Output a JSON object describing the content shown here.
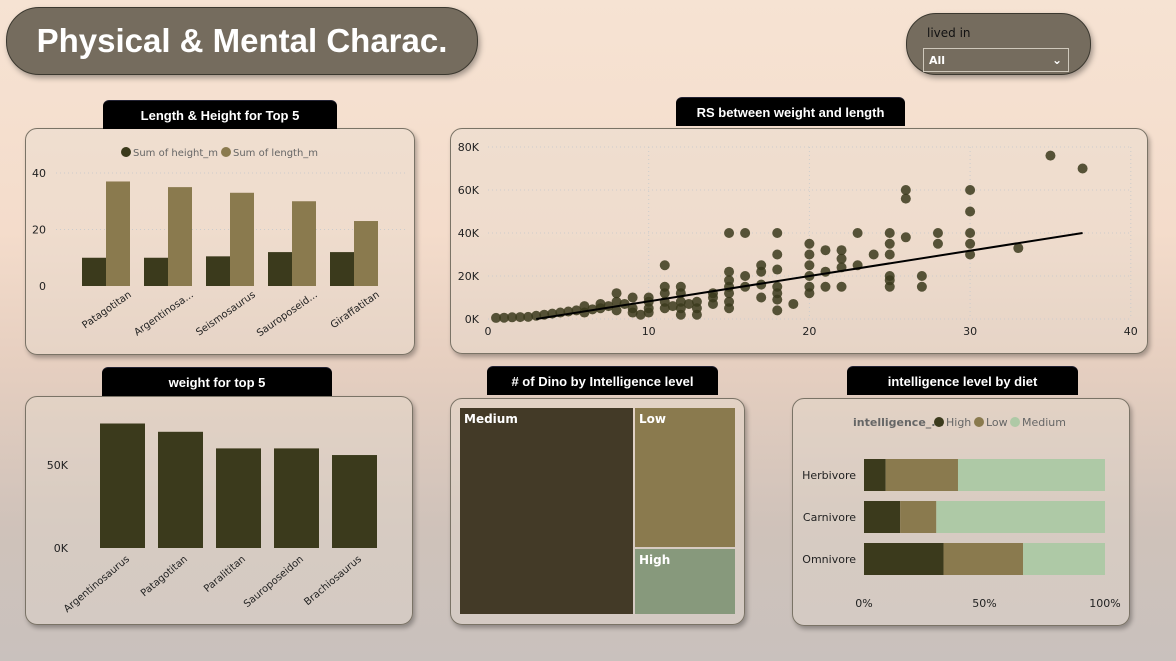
{
  "header": {
    "title": "Physical & Mental Charac."
  },
  "slicer": {
    "label": "lived in",
    "value": "All"
  },
  "colors": {
    "dark": "#3b3a1c",
    "olive": "#8a7a4e",
    "sage": "#aec9a6",
    "treemap_high": "#87997c",
    "treemap_medium": "#433a27"
  },
  "panels": {
    "length_height": "Length & Height for Top 5",
    "scatter": "RS between weight and length",
    "weight": "weight for top 5",
    "treemap": "# of Dino by Intelligence level",
    "diet": "intelligence level by diet"
  },
  "chart_data": [
    {
      "type": "bar",
      "id": "length_height",
      "categories": [
        "Patagotitan",
        "Argentinosa...",
        "Seismosaurus",
        "Sauroposeid...",
        "Giraffatitan"
      ],
      "series": [
        {
          "name": "Sum of height_m",
          "values": [
            10,
            10,
            10.5,
            12,
            12
          ]
        },
        {
          "name": "Sum of length_m",
          "values": [
            37,
            35,
            33,
            30,
            23
          ]
        }
      ],
      "yticks": [
        "0",
        "20",
        "40"
      ],
      "ylim": [
        0,
        40
      ],
      "legend": "top-center"
    },
    {
      "type": "scatter",
      "id": "scatter",
      "xticks": [
        "0",
        "10",
        "20",
        "30",
        "40"
      ],
      "yticks": [
        "0K",
        "20K",
        "40K",
        "60K",
        "80K"
      ],
      "xlim": [
        0,
        40
      ],
      "ylim": [
        0,
        80000
      ],
      "points": [
        [
          0.5,
          500
        ],
        [
          1,
          600
        ],
        [
          1.5,
          800
        ],
        [
          2,
          900
        ],
        [
          2.5,
          1000
        ],
        [
          3,
          1500
        ],
        [
          3.5,
          2000
        ],
        [
          4,
          2500
        ],
        [
          4.5,
          3000
        ],
        [
          5,
          3500
        ],
        [
          5.5,
          4000
        ],
        [
          6,
          6000
        ],
        [
          6,
          3000
        ],
        [
          6.5,
          4500
        ],
        [
          7,
          5000
        ],
        [
          7,
          7000
        ],
        [
          7.5,
          6000
        ],
        [
          8,
          8000
        ],
        [
          8,
          12000
        ],
        [
          8,
          4000
        ],
        [
          8.5,
          7000
        ],
        [
          9,
          10000
        ],
        [
          9,
          5000
        ],
        [
          9,
          3000
        ],
        [
          9.5,
          2000
        ],
        [
          10,
          10000
        ],
        [
          10,
          8000
        ],
        [
          10,
          5000
        ],
        [
          10,
          3000
        ],
        [
          11,
          25000
        ],
        [
          11,
          15000
        ],
        [
          11,
          12000
        ],
        [
          11,
          8000
        ],
        [
          11,
          5000
        ],
        [
          11.5,
          6000
        ],
        [
          12,
          15000
        ],
        [
          12,
          12000
        ],
        [
          12,
          8000
        ],
        [
          12,
          5000
        ],
        [
          12,
          2000
        ],
        [
          12.5,
          7000
        ],
        [
          13,
          5000
        ],
        [
          13,
          2000
        ],
        [
          13,
          8000
        ],
        [
          14,
          12000
        ],
        [
          14,
          10000
        ],
        [
          14,
          7000
        ],
        [
          15,
          40000
        ],
        [
          15,
          22000
        ],
        [
          15,
          18000
        ],
        [
          15,
          15000
        ],
        [
          15,
          12000
        ],
        [
          15,
          8000
        ],
        [
          15,
          5000
        ],
        [
          16,
          40000
        ],
        [
          16,
          20000
        ],
        [
          16,
          15000
        ],
        [
          17,
          25000
        ],
        [
          17,
          22000
        ],
        [
          17,
          16000
        ],
        [
          17,
          10000
        ],
        [
          18,
          40000
        ],
        [
          18,
          30000
        ],
        [
          18,
          23000
        ],
        [
          18,
          15000
        ],
        [
          18,
          12000
        ],
        [
          18,
          9000
        ],
        [
          18,
          4000
        ],
        [
          19,
          7000
        ],
        [
          20,
          35000
        ],
        [
          20,
          30000
        ],
        [
          20,
          25000
        ],
        [
          20,
          20000
        ],
        [
          20,
          15000
        ],
        [
          20,
          12000
        ],
        [
          21,
          32000
        ],
        [
          21,
          22000
        ],
        [
          21,
          15000
        ],
        [
          22,
          32000
        ],
        [
          22,
          28000
        ],
        [
          22,
          24000
        ],
        [
          22,
          15000
        ],
        [
          23,
          40000
        ],
        [
          23,
          25000
        ],
        [
          24,
          30000
        ],
        [
          25,
          40000
        ],
        [
          25,
          35000
        ],
        [
          25,
          30000
        ],
        [
          25,
          20000
        ],
        [
          25,
          18000
        ],
        [
          25,
          15000
        ],
        [
          26,
          60000
        ],
        [
          26,
          56000
        ],
        [
          26,
          38000
        ],
        [
          27,
          20000
        ],
        [
          27,
          15000
        ],
        [
          28,
          40000
        ],
        [
          28,
          35000
        ],
        [
          30,
          60000
        ],
        [
          30,
          50000
        ],
        [
          30,
          40000
        ],
        [
          30,
          35000
        ],
        [
          30,
          30000
        ],
        [
          33,
          33000
        ],
        [
          35,
          76000
        ],
        [
          37,
          70000
        ]
      ],
      "trendline": [
        [
          3,
          0
        ],
        [
          37,
          40000
        ]
      ]
    },
    {
      "type": "bar",
      "id": "weight",
      "categories": [
        "Argentinosaurus",
        "Patagotitan",
        "Paralititan",
        "Sauroposeidon",
        "Brachiosaurus"
      ],
      "values": [
        75000,
        70000,
        60000,
        60000,
        56000
      ],
      "yticks": [
        "0K",
        "50K"
      ],
      "ylim": [
        0,
        80000
      ]
    },
    {
      "type": "treemap",
      "id": "treemap",
      "categories": [
        "Medium",
        "Low",
        "High"
      ],
      "values": [
        63,
        25,
        12
      ]
    },
    {
      "type": "bar",
      "id": "diet",
      "orientation": "horizontal",
      "stacked": "100%",
      "categories": [
        "Herbivore",
        "Carnivore",
        "Omnivore"
      ],
      "legend_title": "intelligence_...",
      "series": [
        {
          "name": "High",
          "values": [
            9,
            15,
            33
          ]
        },
        {
          "name": "Low",
          "values": [
            30,
            15,
            33
          ]
        },
        {
          "name": "Medium",
          "values": [
            61,
            70,
            34
          ]
        }
      ],
      "xticks": [
        "0%",
        "50%",
        "100%"
      ]
    }
  ]
}
